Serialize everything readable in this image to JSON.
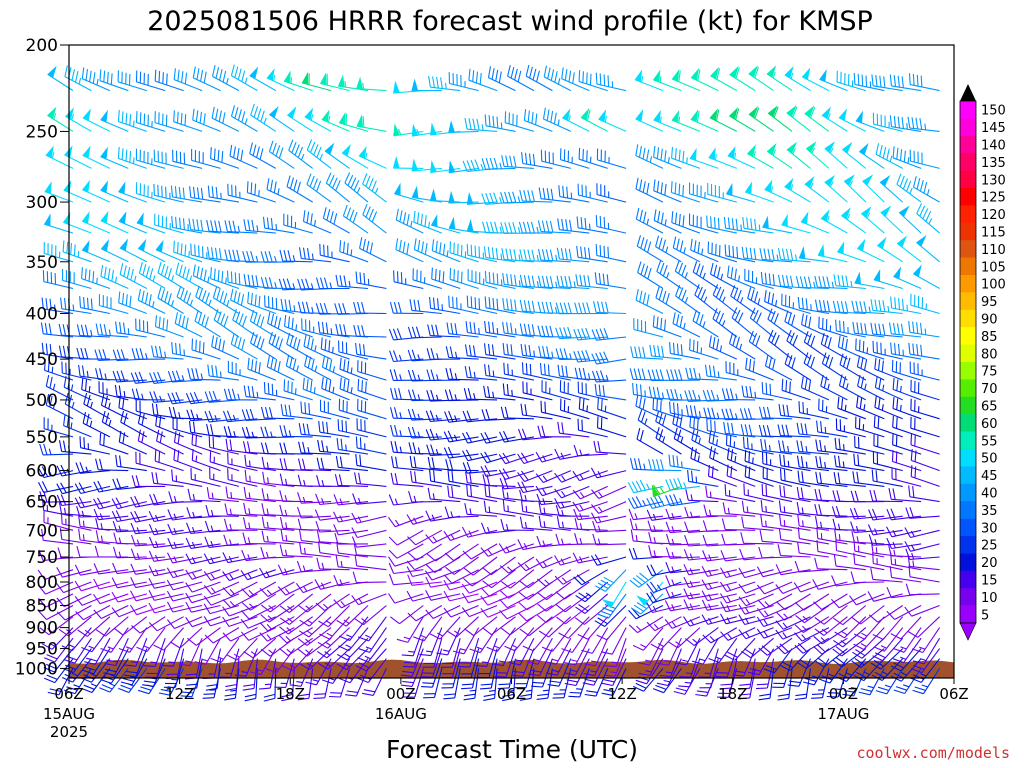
{
  "chart_data": {
    "type": "wind-barb-time-height",
    "title": "2025081506 HRRR forecast wind profile (kt) for KMSP",
    "xlabel": "Forecast Time (UTC)",
    "ylabel": "",
    "credit": "coolwx.com/models",
    "x_ticks": [
      {
        "label": "06Z",
        "sub": [
          "15AUG",
          "2025"
        ],
        "hour": 0
      },
      {
        "label": "12Z",
        "sub": [],
        "hour": 6
      },
      {
        "label": "18Z",
        "sub": [],
        "hour": 12
      },
      {
        "label": "00Z",
        "sub": [
          "16AUG"
        ],
        "hour": 18
      },
      {
        "label": "06Z",
        "sub": [],
        "hour": 24
      },
      {
        "label": "12Z",
        "sub": [],
        "hour": 30
      },
      {
        "label": "18Z",
        "sub": [],
        "hour": 36
      },
      {
        "label": "00Z",
        "sub": [
          "17AUG"
        ],
        "hour": 42
      },
      {
        "label": "06Z",
        "sub": [],
        "hour": 48
      }
    ],
    "xlim": [
      0,
      48
    ],
    "ylim_hpa": [
      1025,
      200
    ],
    "y_scale": "pressure-log",
    "y_ticks": [
      "200",
      "250",
      "300",
      "350",
      "400",
      "450",
      "500",
      "550",
      "600",
      "650",
      "700",
      "750",
      "800",
      "850",
      "900",
      "950",
      "1000"
    ],
    "colorbar": {
      "units": "kt",
      "labels": [
        "150",
        "145",
        "140",
        "135",
        "130",
        "125",
        "120",
        "115",
        "110",
        "105",
        "100",
        "95",
        "90",
        "85",
        "80",
        "75",
        "70",
        "65",
        "60",
        "55",
        "50",
        "45",
        "40",
        "35",
        "30",
        "25",
        "20",
        "15",
        "10",
        "5"
      ],
      "colors": [
        "#ff00ff",
        "#ff00dd",
        "#ff0099",
        "#ff0066",
        "#ff0044",
        "#ff0000",
        "#ff2200",
        "#ee3300",
        "#dd5511",
        "#ee7700",
        "#ff9900",
        "#ffbb00",
        "#ffdd00",
        "#ffff00",
        "#ddff00",
        "#99ff00",
        "#55ee00",
        "#22dd22",
        "#00dd77",
        "#00eebb",
        "#00ddff",
        "#00bbff",
        "#0099ff",
        "#0077ff",
        "#0055ff",
        "#0033ee",
        "#0011dd",
        "#4400ee",
        "#7700ee",
        "#9900ff"
      ]
    },
    "levels_hpa": [
      1000,
      975,
      950,
      925,
      900,
      875,
      850,
      825,
      800,
      775,
      750,
      725,
      700,
      675,
      650,
      625,
      600,
      575,
      550,
      525,
      500,
      475,
      450,
      425,
      400,
      375,
      350,
      325,
      300,
      275,
      250,
      225
    ],
    "gaps": [
      {
        "from": 17.5,
        "to": 19
      },
      {
        "from": 30,
        "to": 31.5
      }
    ],
    "terrain_top_hpa": 983,
    "profile": [
      {
        "hpa": 1000,
        "dir": 200,
        "spd": 22
      },
      {
        "hpa": 975,
        "dir": 205,
        "spd": 20
      },
      {
        "hpa": 950,
        "dir": 210,
        "spd": 18
      },
      {
        "hpa": 925,
        "dir": 215,
        "spd": 16
      },
      {
        "hpa": 900,
        "dir": 225,
        "spd": 14
      },
      {
        "hpa": 875,
        "dir": 235,
        "spd": 13
      },
      {
        "hpa": 850,
        "dir": 245,
        "spd": 12
      },
      {
        "hpa": 825,
        "dir": 250,
        "spd": 12
      },
      {
        "hpa": 800,
        "dir": 255,
        "spd": 12
      },
      {
        "hpa": 775,
        "dir": 258,
        "spd": 13
      },
      {
        "hpa": 750,
        "dir": 262,
        "spd": 13
      },
      {
        "hpa": 725,
        "dir": 265,
        "spd": 13
      },
      {
        "hpa": 700,
        "dir": 268,
        "spd": 14
      },
      {
        "hpa": 675,
        "dir": 270,
        "spd": 15
      },
      {
        "hpa": 650,
        "dir": 272,
        "spd": 16
      },
      {
        "hpa": 625,
        "dir": 275,
        "spd": 18
      },
      {
        "hpa": 600,
        "dir": 276,
        "spd": 20
      },
      {
        "hpa": 575,
        "dir": 278,
        "spd": 22
      },
      {
        "hpa": 550,
        "dir": 280,
        "spd": 25
      },
      {
        "hpa": 525,
        "dir": 281,
        "spd": 27
      },
      {
        "hpa": 500,
        "dir": 282,
        "spd": 30
      },
      {
        "hpa": 475,
        "dir": 283,
        "spd": 32
      },
      {
        "hpa": 450,
        "dir": 284,
        "spd": 34
      },
      {
        "hpa": 425,
        "dir": 285,
        "spd": 36
      },
      {
        "hpa": 400,
        "dir": 286,
        "spd": 38
      },
      {
        "hpa": 375,
        "dir": 287,
        "spd": 40
      },
      {
        "hpa": 350,
        "dir": 288,
        "spd": 42
      },
      {
        "hpa": 325,
        "dir": 289,
        "spd": 43
      },
      {
        "hpa": 300,
        "dir": 290,
        "spd": 44
      },
      {
        "hpa": 275,
        "dir": 290,
        "spd": 46
      },
      {
        "hpa": 250,
        "dir": 291,
        "spd": 50
      },
      {
        "hpa": 225,
        "dir": 292,
        "spd": 48
      }
    ],
    "time_variation": [
      {
        "t_from": 0,
        "t_to": 17.5,
        "spd_factor": 1.0,
        "dir_shift": 0
      },
      {
        "t_from": 19,
        "t_to": 30,
        "spd_factor": 0.95,
        "dir_shift": -10
      },
      {
        "t_from": 31.5,
        "t_to": 48,
        "spd_factor": 1.05,
        "dir_shift": 5
      }
    ],
    "highlights": [
      {
        "t": 27,
        "hpa": 210,
        "spd": 85,
        "dir": 300
      },
      {
        "t": 29,
        "hpa": 245,
        "spd": 65,
        "dir": 300
      },
      {
        "t": 31,
        "hpa": 800,
        "spd": 75,
        "dir": 190
      },
      {
        "t": 33,
        "hpa": 625,
        "spd": 65,
        "dir": 250
      },
      {
        "t": 14,
        "hpa": 225,
        "spd": 60,
        "dir": 285
      }
    ]
  }
}
